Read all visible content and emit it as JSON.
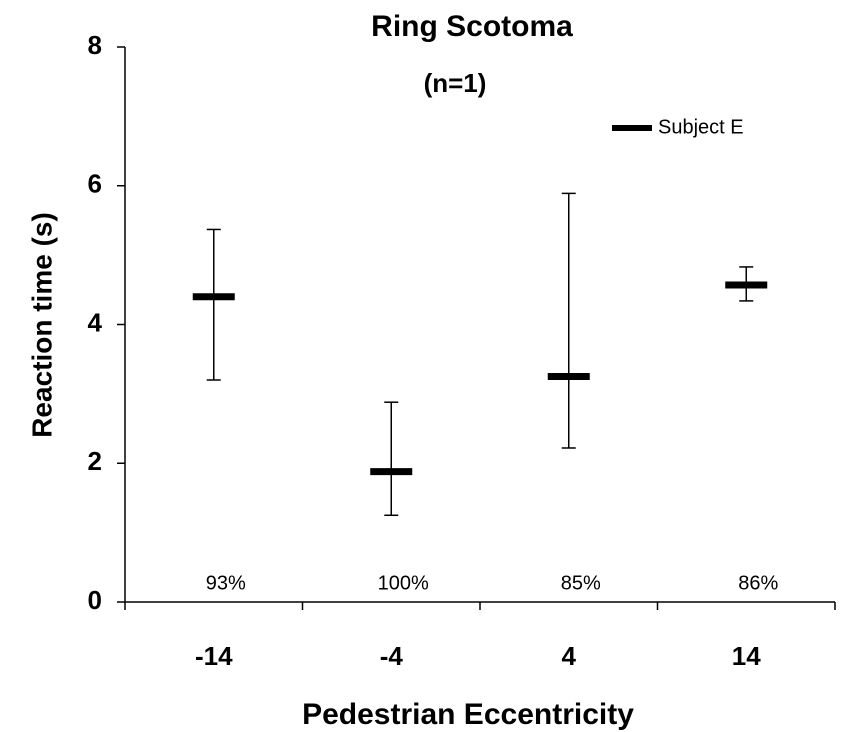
{
  "chart_data": {
    "type": "errorbar",
    "title": "Ring Scotoma",
    "subtitle": "(n=1)",
    "x_label": "Pedestrian Eccentricity",
    "y_label": "Reaction time (s)",
    "categories": [
      "-14",
      "-4",
      "4",
      "14"
    ],
    "series": [
      {
        "name": "Subject E",
        "color": "#000000",
        "values": [
          4.4,
          1.88,
          3.25,
          4.57
        ],
        "low": [
          3.2,
          1.25,
          2.22,
          4.34
        ],
        "high": [
          5.37,
          2.88,
          5.89,
          4.83
        ]
      }
    ],
    "annotations": [
      "93%",
      "100%",
      "85%",
      "86%"
    ],
    "ylim": [
      0,
      8
    ],
    "yticks": [
      0,
      2,
      4,
      6,
      8
    ],
    "legend": "upper right"
  }
}
